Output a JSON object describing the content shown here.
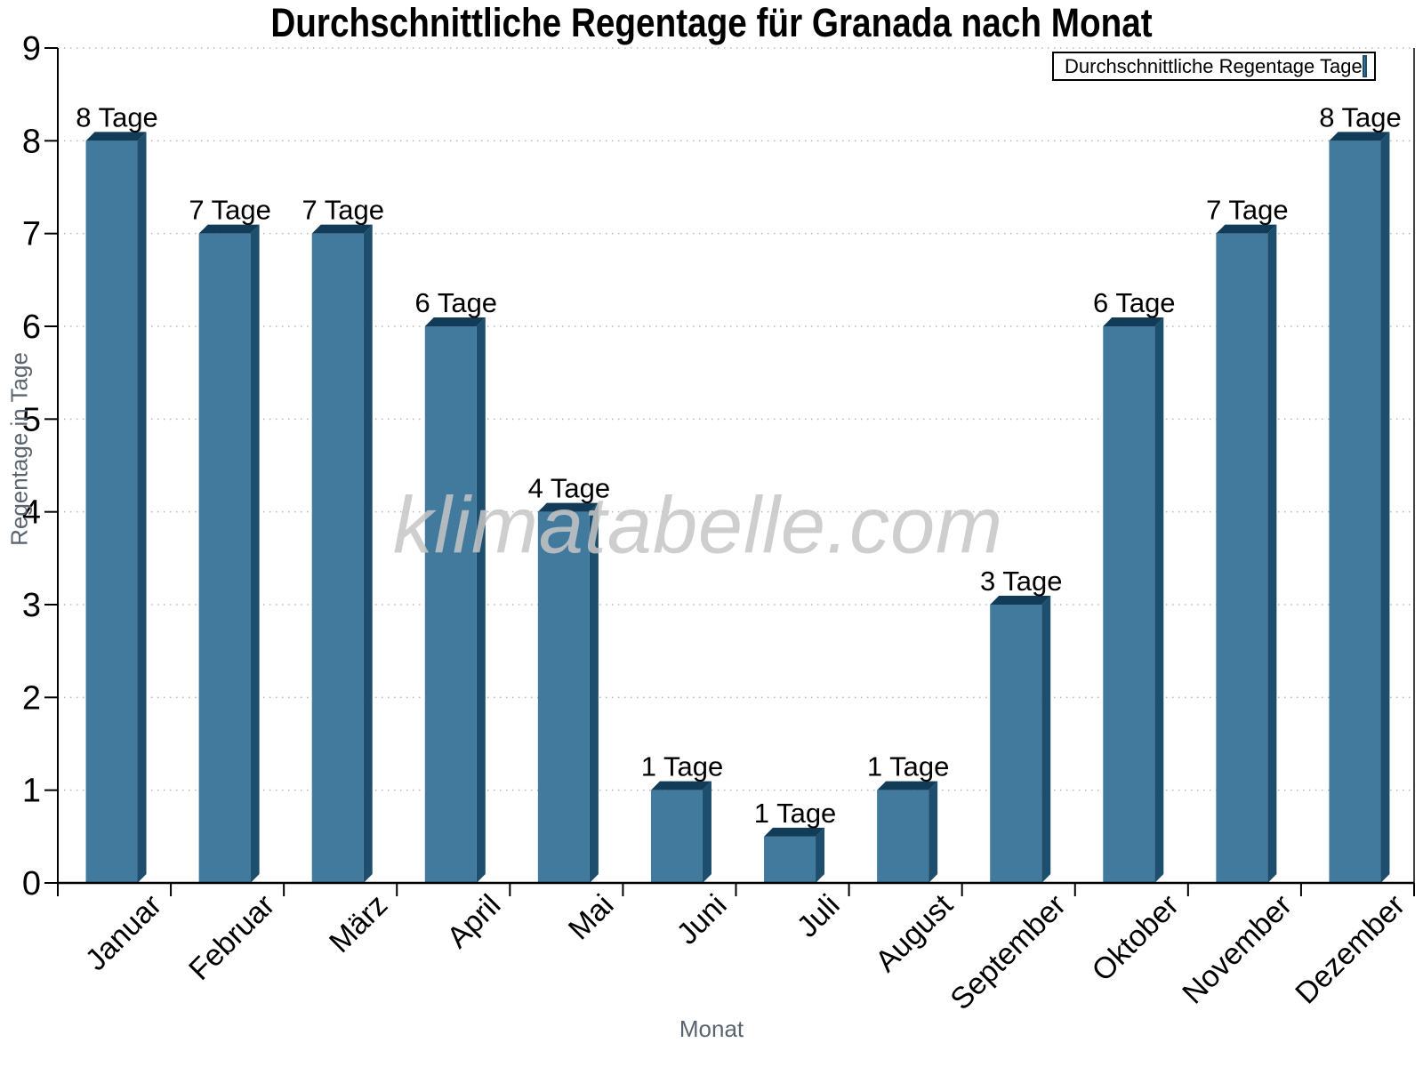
{
  "chart_data": {
    "type": "bar",
    "title": "Durchschnittliche Regentage für Granada nach Monat",
    "xlabel": "Monat",
    "ylabel": "Regentage in Tage",
    "legend": "Durchschnittliche Regentage Tage",
    "legend_position": "top-right",
    "watermark": "klimatabelle.com",
    "categories": [
      "Januar",
      "Februar",
      "März",
      "April",
      "Mai",
      "Juni",
      "Juli",
      "August",
      "September",
      "Oktober",
      "November",
      "Dezember"
    ],
    "values": [
      8,
      7,
      7,
      6,
      4,
      1,
      0.5,
      1,
      3,
      6,
      7,
      8
    ],
    "bar_labels": [
      "8 Tage",
      "7 Tage",
      "7 Tage",
      "6 Tage",
      "4 Tage",
      "1 Tage",
      "1 Tage",
      "1 Tage",
      "3 Tage",
      "6 Tage",
      "7 Tage",
      "8 Tage"
    ],
    "ylim": [
      0,
      9
    ],
    "yticks": [
      0,
      1,
      2,
      3,
      4,
      5,
      6,
      7,
      8,
      9
    ],
    "grid": "horizontal-dotted",
    "colors": {
      "bar_front": "#417a9c",
      "bar_side": "#1d4e6e",
      "bar_top": "#113b57",
      "grid": "#b8b8b8",
      "axis": "#000000",
      "axis_title": "#5a646e",
      "watermark": "#c6c6c6"
    }
  }
}
